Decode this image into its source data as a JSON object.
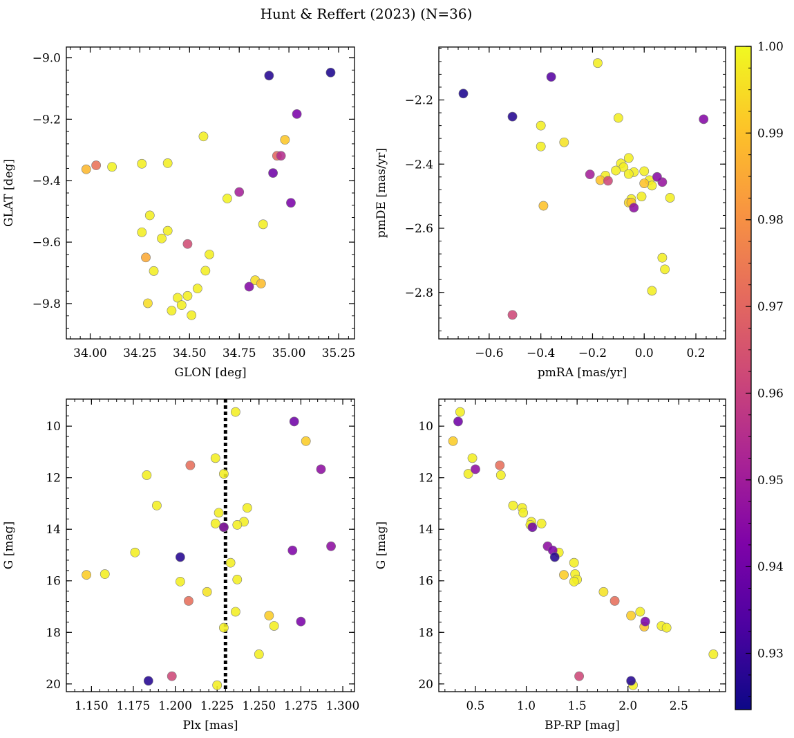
{
  "title": "Hunt & Reffert (2023) (N=36)",
  "colorbar": {
    "min": 0.9235,
    "max": 1.0,
    "colormap": "plasma",
    "ticks": [
      0.93,
      0.94,
      0.95,
      0.96,
      0.97,
      0.98,
      0.99,
      1.0
    ],
    "tick_labels": [
      "0.93",
      "0.94",
      "0.95",
      "0.96",
      "0.97",
      "0.98",
      "0.99",
      "1.00"
    ]
  },
  "chart_data": [
    {
      "type": "scatter",
      "xlabel": "GLON [deg]",
      "ylabel": "GLAT [deg]",
      "xlim": [
        33.88,
        35.33
      ],
      "ylim": [
        -9.915,
        -8.965
      ],
      "y_inverted": false,
      "xticks": [
        34.0,
        34.25,
        34.5,
        34.75,
        35.0,
        35.25
      ],
      "xtick_labels": [
        "34.00",
        "34.25",
        "34.50",
        "34.75",
        "35.00",
        "35.25"
      ],
      "yticks": [
        -9.8,
        -9.6,
        -9.4,
        -9.2,
        -9.0
      ],
      "ytick_labels": [
        "−9.8",
        "−9.6",
        "−9.4",
        "−9.2",
        "−9.0"
      ],
      "points": [
        [
          34.9,
          -9.058,
          0.927
        ],
        [
          35.21,
          -9.048,
          0.926
        ],
        [
          35.04,
          -9.183,
          0.942
        ],
        [
          34.57,
          -9.256,
          0.998
        ],
        [
          34.98,
          -9.267,
          0.991
        ],
        [
          34.94,
          -9.319,
          0.97
        ],
        [
          34.96,
          -9.319,
          0.955
        ],
        [
          33.98,
          -9.363,
          0.988
        ],
        [
          34.03,
          -9.35,
          0.973
        ],
        [
          34.11,
          -9.355,
          0.999
        ],
        [
          34.26,
          -9.345,
          0.998
        ],
        [
          34.39,
          -9.343,
          0.998
        ],
        [
          34.92,
          -9.375,
          0.94
        ],
        [
          34.75,
          -9.437,
          0.951
        ],
        [
          34.69,
          -9.458,
          0.999
        ],
        [
          35.01,
          -9.472,
          0.942
        ],
        [
          34.3,
          -9.513,
          0.998
        ],
        [
          34.87,
          -9.542,
          0.998
        ],
        [
          34.26,
          -9.568,
          0.998
        ],
        [
          34.39,
          -9.563,
          0.998
        ],
        [
          34.36,
          -9.588,
          0.998
        ],
        [
          34.49,
          -9.606,
          0.963
        ],
        [
          34.6,
          -9.64,
          0.998
        ],
        [
          34.28,
          -9.65,
          0.985
        ],
        [
          34.32,
          -9.694,
          0.998
        ],
        [
          34.58,
          -9.693,
          0.998
        ],
        [
          34.83,
          -9.724,
          0.995
        ],
        [
          34.86,
          -9.735,
          0.989
        ],
        [
          34.8,
          -9.745,
          0.944
        ],
        [
          34.54,
          -9.751,
          0.998
        ],
        [
          34.44,
          -9.781,
          0.998
        ],
        [
          34.49,
          -9.775,
          0.998
        ],
        [
          34.29,
          -9.799,
          0.995
        ],
        [
          34.46,
          -9.805,
          0.998
        ],
        [
          34.41,
          -9.823,
          0.998
        ],
        [
          34.51,
          -9.838,
          0.998
        ]
      ]
    },
    {
      "type": "scatter",
      "xlabel": "pmRA [mas/yr]",
      "ylabel": "pmDE [mas/yr]",
      "xlim": [
        -0.795,
        0.315
      ],
      "ylim": [
        -2.945,
        -2.035
      ],
      "y_inverted": false,
      "xticks": [
        -0.6,
        -0.4,
        -0.2,
        0.0,
        0.2
      ],
      "xtick_labels": [
        "−0.6",
        "−0.4",
        "−0.2",
        "0.0",
        "0.2"
      ],
      "yticks": [
        -2.8,
        -2.6,
        -2.4,
        -2.2
      ],
      "ytick_labels": [
        "−2.8",
        "−2.6",
        "−2.4",
        "−2.2"
      ],
      "points": [
        [
          -0.18,
          -2.085,
          0.998
        ],
        [
          -0.36,
          -2.128,
          0.935
        ],
        [
          -0.7,
          -2.18,
          0.926
        ],
        [
          -0.51,
          -2.252,
          0.927
        ],
        [
          0.23,
          -2.26,
          0.944
        ],
        [
          -0.4,
          -2.28,
          0.998
        ],
        [
          -0.1,
          -2.256,
          0.998
        ],
        [
          -0.31,
          -2.332,
          0.996
        ],
        [
          -0.4,
          -2.345,
          0.998
        ],
        [
          -0.06,
          -2.381,
          0.998
        ],
        [
          -0.09,
          -2.398,
          0.998
        ],
        [
          -0.08,
          -2.41,
          0.998
        ],
        [
          -0.11,
          -2.42,
          0.998
        ],
        [
          -0.04,
          -2.425,
          0.998
        ],
        [
          0.0,
          -2.422,
          0.998
        ],
        [
          -0.06,
          -2.431,
          0.998
        ],
        [
          -0.15,
          -2.436,
          0.998
        ],
        [
          -0.21,
          -2.432,
          0.951
        ],
        [
          0.05,
          -2.44,
          0.945
        ],
        [
          0.02,
          -2.45,
          0.998
        ],
        [
          -0.17,
          -2.45,
          0.99
        ],
        [
          -0.14,
          -2.452,
          0.962
        ],
        [
          0.07,
          -2.456,
          0.948
        ],
        [
          0.0,
          -2.46,
          0.99
        ],
        [
          0.03,
          -2.467,
          0.998
        ],
        [
          0.1,
          -2.505,
          0.998
        ],
        [
          -0.01,
          -2.501,
          0.998
        ],
        [
          -0.05,
          -2.509,
          0.998
        ],
        [
          -0.05,
          -2.52,
          0.99
        ],
        [
          -0.04,
          -2.536,
          0.946
        ],
        [
          -0.39,
          -2.53,
          0.99
        ],
        [
          0.07,
          -2.692,
          0.998
        ],
        [
          0.08,
          -2.728,
          0.998
        ],
        [
          0.03,
          -2.795,
          0.998
        ],
        [
          -0.51,
          -2.87,
          0.962
        ],
        [
          -0.06,
          -2.52,
          0.994
        ]
      ]
    },
    {
      "type": "scatter",
      "xlabel": "Plx [mas]",
      "ylabel": "G [mag]",
      "xlim": [
        1.135,
        1.307
      ],
      "ylim": [
        20.3,
        8.95
      ],
      "y_inverted": true,
      "vline": 1.23,
      "xticks": [
        1.15,
        1.175,
        1.2,
        1.225,
        1.25,
        1.275,
        1.3
      ],
      "xtick_labels": [
        "1.150",
        "1.175",
        "1.200",
        "1.225",
        "1.250",
        "1.275",
        "1.300"
      ],
      "yticks": [
        10,
        12,
        14,
        16,
        18,
        20
      ],
      "ytick_labels": [
        "10",
        "12",
        "14",
        "16",
        "18",
        "20"
      ],
      "points": [
        [
          1.236,
          9.45,
          0.998
        ],
        [
          1.271,
          9.82,
          0.94
        ],
        [
          1.278,
          10.58,
          0.992
        ],
        [
          1.224,
          11.24,
          0.998
        ],
        [
          1.209,
          11.52,
          0.972
        ],
        [
          1.287,
          11.67,
          0.946
        ],
        [
          1.183,
          11.9,
          0.998
        ],
        [
          1.229,
          11.85,
          0.998
        ],
        [
          1.189,
          13.08,
          0.998
        ],
        [
          1.243,
          13.17,
          0.998
        ],
        [
          1.226,
          13.36,
          0.998
        ],
        [
          1.241,
          13.71,
          0.998
        ],
        [
          1.224,
          13.78,
          0.998
        ],
        [
          1.237,
          13.83,
          0.998
        ],
        [
          1.229,
          13.92,
          0.998
        ],
        [
          1.229,
          13.92,
          0.94
        ],
        [
          1.27,
          14.82,
          0.943
        ],
        [
          1.293,
          14.66,
          0.946
        ],
        [
          1.176,
          14.9,
          0.998
        ],
        [
          1.203,
          15.08,
          0.927
        ],
        [
          1.233,
          15.3,
          0.998
        ],
        [
          1.147,
          15.77,
          0.992
        ],
        [
          1.158,
          15.74,
          0.998
        ],
        [
          1.237,
          15.95,
          0.998
        ],
        [
          1.203,
          16.03,
          0.998
        ],
        [
          1.219,
          16.43,
          0.996
        ],
        [
          1.208,
          16.78,
          0.972
        ],
        [
          1.236,
          17.2,
          0.998
        ],
        [
          1.256,
          17.35,
          0.992
        ],
        [
          1.275,
          17.58,
          0.942
        ],
        [
          1.259,
          17.75,
          0.998
        ],
        [
          1.229,
          17.82,
          0.998
        ],
        [
          1.25,
          18.85,
          0.998
        ],
        [
          1.198,
          19.7,
          0.962
        ],
        [
          1.184,
          19.88,
          0.927
        ],
        [
          1.225,
          20.05,
          0.998
        ]
      ]
    },
    {
      "type": "scatter",
      "xlabel": "BP-RP [mag]",
      "ylabel": "G [mag]",
      "xlim": [
        0.14,
        2.96
      ],
      "ylim": [
        20.3,
        8.95
      ],
      "y_inverted": true,
      "xticks": [
        0.5,
        1.0,
        1.5,
        2.0,
        2.5
      ],
      "xtick_labels": [
        "0.5",
        "1.0",
        "1.5",
        "2.0",
        "2.5"
      ],
      "yticks": [
        10,
        12,
        14,
        16,
        18,
        20
      ],
      "ytick_labels": [
        "10",
        "12",
        "14",
        "16",
        "18",
        "20"
      ],
      "points": [
        [
          0.35,
          9.45,
          0.998
        ],
        [
          0.33,
          9.82,
          0.94
        ],
        [
          0.28,
          10.58,
          0.992
        ],
        [
          0.47,
          11.24,
          0.998
        ],
        [
          0.74,
          11.52,
          0.972
        ],
        [
          0.5,
          11.67,
          0.946
        ],
        [
          0.43,
          11.85,
          0.998
        ],
        [
          0.75,
          11.9,
          0.998
        ],
        [
          0.87,
          13.08,
          0.998
        ],
        [
          0.96,
          13.17,
          0.998
        ],
        [
          0.97,
          13.36,
          0.998
        ],
        [
          1.05,
          13.71,
          0.998
        ],
        [
          1.15,
          13.78,
          0.998
        ],
        [
          1.04,
          13.83,
          0.998
        ],
        [
          1.06,
          13.92,
          0.94
        ],
        [
          1.21,
          14.66,
          0.946
        ],
        [
          1.26,
          14.82,
          0.943
        ],
        [
          1.32,
          14.9,
          0.998
        ],
        [
          1.28,
          15.08,
          0.927
        ],
        [
          1.47,
          15.3,
          0.998
        ],
        [
          1.48,
          15.74,
          0.998
        ],
        [
          1.37,
          15.77,
          0.992
        ],
        [
          1.5,
          15.95,
          0.998
        ],
        [
          1.47,
          16.03,
          0.998
        ],
        [
          1.76,
          16.43,
          0.996
        ],
        [
          1.87,
          16.78,
          0.972
        ],
        [
          2.12,
          17.2,
          0.998
        ],
        [
          2.03,
          17.35,
          0.992
        ],
        [
          2.17,
          17.58,
          0.942
        ],
        [
          2.16,
          17.78,
          0.99
        ],
        [
          2.33,
          17.75,
          0.998
        ],
        [
          2.38,
          17.82,
          0.998
        ],
        [
          2.84,
          18.85,
          0.998
        ],
        [
          1.52,
          19.7,
          0.962
        ],
        [
          2.03,
          19.88,
          0.927
        ],
        [
          2.05,
          20.05,
          0.998
        ]
      ]
    }
  ]
}
